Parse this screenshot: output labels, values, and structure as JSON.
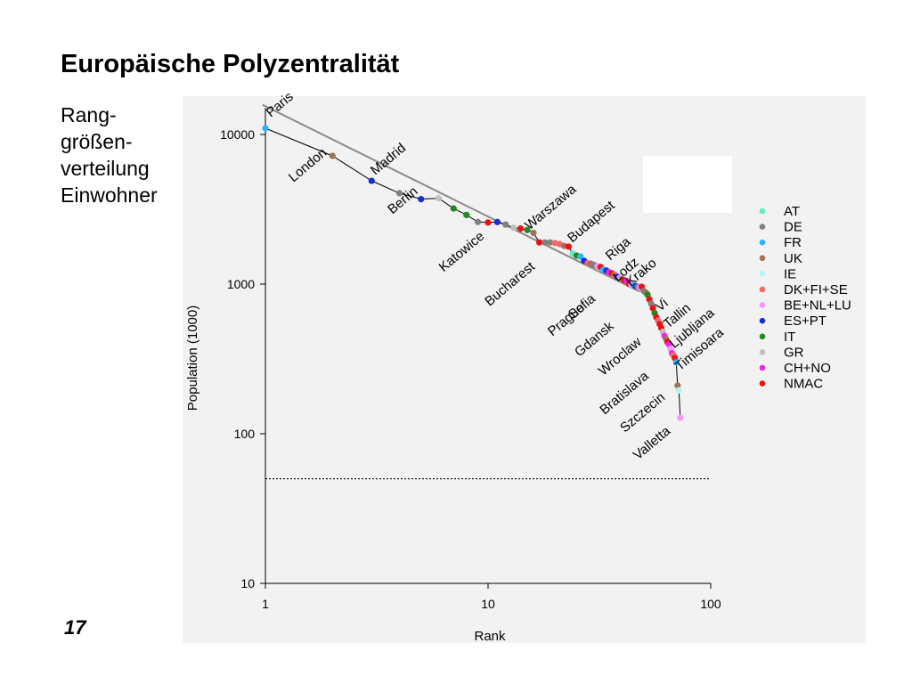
{
  "slide": {
    "title": "Europäische Polyzentralität",
    "side_label": [
      "Rang-",
      "größen-",
      "verteilung",
      "Einwohner"
    ],
    "number": "17"
  },
  "chart_data": {
    "type": "scatter",
    "title": "",
    "xlabel": "Rank",
    "ylabel": "Population (1000)",
    "x_scale": "log",
    "y_scale": "log",
    "xlim": [
      1,
      100
    ],
    "ylim": [
      10,
      15000
    ],
    "x_ticks": [
      {
        "value": 1,
        "label": "1"
      },
      {
        "value": 10,
        "label": "10"
      },
      {
        "value": 100,
        "label": "100"
      }
    ],
    "y_ticks": [
      {
        "value": 10,
        "label": "10"
      },
      {
        "value": 100,
        "label": "100"
      },
      {
        "value": 1000,
        "label": "1000"
      },
      {
        "value": 10000,
        "label": "10000"
      }
    ],
    "grid": false,
    "threshold": {
      "y": 50,
      "style": "dotted"
    },
    "trend_line": {
      "x": [
        0.97,
        48
      ],
      "y": [
        15800,
        890
      ]
    },
    "legend_position": "right",
    "legend": [
      {
        "key": "AT",
        "label": "AT",
        "color": "#66e8c4"
      },
      {
        "key": "DE",
        "label": "DE",
        "color": "#808080"
      },
      {
        "key": "FR",
        "label": "FR",
        "color": "#29b6f6"
      },
      {
        "key": "UK",
        "label": "UK",
        "color": "#a0725a"
      },
      {
        "key": "IE",
        "label": "IE",
        "color": "#b4f4f4"
      },
      {
        "key": "DK_FI_SE",
        "label": "DK+FI+SE",
        "color": "#ef6a6a"
      },
      {
        "key": "BE_NL_LU",
        "label": "BE+NL+LU",
        "color": "#f39af3"
      },
      {
        "key": "ES_PT",
        "label": "ES+PT",
        "color": "#1a2bd8"
      },
      {
        "key": "IT",
        "label": "IT",
        "color": "#1f8a1f"
      },
      {
        "key": "GR",
        "label": "GR",
        "color": "#c0c0c0"
      },
      {
        "key": "CH_NO",
        "label": "CH+NO",
        "color": "#ee22ee"
      },
      {
        "key": "NMAC",
        "label": "NMAC",
        "color": "#ee1111"
      }
    ],
    "points": [
      {
        "rank": 1,
        "pop": 11000,
        "group": "FR"
      },
      {
        "rank": 2,
        "pop": 7200,
        "group": "UK"
      },
      {
        "rank": 3,
        "pop": 4900,
        "group": "ES_PT"
      },
      {
        "rank": 4,
        "pop": 4050,
        "group": "DE"
      },
      {
        "rank": 5,
        "pop": 3700,
        "group": "ES_PT"
      },
      {
        "rank": 6,
        "pop": 3750,
        "group": "GR"
      },
      {
        "rank": 7,
        "pop": 3200,
        "group": "IT"
      },
      {
        "rank": 8,
        "pop": 2900,
        "group": "IT"
      },
      {
        "rank": 9,
        "pop": 2600,
        "group": "DE"
      },
      {
        "rank": 10,
        "pop": 2580,
        "group": "NMAC"
      },
      {
        "rank": 11,
        "pop": 2600,
        "group": "ES_PT"
      },
      {
        "rank": 12,
        "pop": 2500,
        "group": "DE"
      },
      {
        "rank": 13,
        "pop": 2380,
        "group": "GR"
      },
      {
        "rank": 14,
        "pop": 2350,
        "group": "NMAC"
      },
      {
        "rank": 15,
        "pop": 2300,
        "group": "IT"
      },
      {
        "rank": 16,
        "pop": 2200,
        "group": "UK"
      },
      {
        "rank": 17,
        "pop": 1900,
        "group": "NMAC"
      },
      {
        "rank": 18,
        "pop": 1900,
        "group": "DE"
      },
      {
        "rank": 19,
        "pop": 1900,
        "group": "DE"
      },
      {
        "rank": 20,
        "pop": 1880,
        "group": "DK_FI_SE"
      },
      {
        "rank": 21,
        "pop": 1850,
        "group": "DK_FI_SE"
      },
      {
        "rank": 22,
        "pop": 1800,
        "group": "UK"
      },
      {
        "rank": 23,
        "pop": 1780,
        "group": "NMAC"
      },
      {
        "rank": 24,
        "pop": 1600,
        "group": "AT"
      },
      {
        "rank": 25,
        "pop": 1550,
        "group": "IT"
      },
      {
        "rank": 26,
        "pop": 1530,
        "group": "FR"
      },
      {
        "rank": 27,
        "pop": 1430,
        "group": "ES_PT"
      },
      {
        "rank": 28,
        "pop": 1380,
        "group": "DK_FI_SE"
      },
      {
        "rank": 29,
        "pop": 1370,
        "group": "UK"
      },
      {
        "rank": 30,
        "pop": 1340,
        "group": "DE"
      },
      {
        "rank": 31,
        "pop": 1320,
        "group": "BE_NL_LU"
      },
      {
        "rank": 32,
        "pop": 1300,
        "group": "NMAC"
      },
      {
        "rank": 33,
        "pop": 1250,
        "group": "FR"
      },
      {
        "rank": 34,
        "pop": 1230,
        "group": "ES_PT"
      },
      {
        "rank": 35,
        "pop": 1200,
        "group": "CH_NO"
      },
      {
        "rank": 36,
        "pop": 1180,
        "group": "NMAC"
      },
      {
        "rank": 37,
        "pop": 1150,
        "group": "DK_FI_SE"
      },
      {
        "rank": 38,
        "pop": 1120,
        "group": "ES_PT"
      },
      {
        "rank": 39,
        "pop": 1100,
        "group": "BE_NL_LU"
      },
      {
        "rank": 40,
        "pop": 1080,
        "group": "UK"
      },
      {
        "rank": 41,
        "pop": 1060,
        "group": "NMAC"
      },
      {
        "rank": 42,
        "pop": 1050,
        "group": "CH_NO"
      },
      {
        "rank": 43,
        "pop": 1000,
        "group": "NMAC"
      },
      {
        "rank": 44,
        "pop": 990,
        "group": "BE_NL_LU"
      },
      {
        "rank": 45,
        "pop": 980,
        "group": "FR"
      },
      {
        "rank": 46,
        "pop": 970,
        "group": "ES_PT"
      },
      {
        "rank": 47,
        "pop": 960,
        "group": "DE"
      },
      {
        "rank": 48,
        "pop": 950,
        "group": "BE_NL_LU"
      },
      {
        "rank": 49,
        "pop": 960,
        "group": "NMAC"
      },
      {
        "rank": 50,
        "pop": 900,
        "group": "DE"
      },
      {
        "rank": 51,
        "pop": 880,
        "group": "UK"
      },
      {
        "rank": 52,
        "pop": 850,
        "group": "IT"
      },
      {
        "rank": 53,
        "pop": 790,
        "group": "NMAC"
      },
      {
        "rank": 54,
        "pop": 740,
        "group": "DE"
      },
      {
        "rank": 55,
        "pop": 690,
        "group": "NMAC"
      },
      {
        "rank": 56,
        "pop": 640,
        "group": "IT"
      },
      {
        "rank": 57,
        "pop": 600,
        "group": "NMAC"
      },
      {
        "rank": 58,
        "pop": 570,
        "group": "DK_FI_SE"
      },
      {
        "rank": 59,
        "pop": 540,
        "group": "NMAC"
      },
      {
        "rank": 60,
        "pop": 510,
        "group": "NMAC"
      },
      {
        "rank": 61,
        "pop": 480,
        "group": "GR"
      },
      {
        "rank": 62,
        "pop": 450,
        "group": "CH_NO"
      },
      {
        "rank": 63,
        "pop": 430,
        "group": "UK"
      },
      {
        "rank": 64,
        "pop": 410,
        "group": "NMAC"
      },
      {
        "rank": 65,
        "pop": 395,
        "group": "CH_NO"
      },
      {
        "rank": 66,
        "pop": 370,
        "group": "BE_NL_LU"
      },
      {
        "rank": 67,
        "pop": 345,
        "group": "CH_NO"
      },
      {
        "rank": 68,
        "pop": 335,
        "group": "DK_FI_SE"
      },
      {
        "rank": 69,
        "pop": 320,
        "group": "NMAC"
      },
      {
        "rank": 70,
        "pop": 300,
        "group": "FR"
      },
      {
        "rank": 71,
        "pop": 210,
        "group": "UK"
      },
      {
        "rank": 72,
        "pop": 195,
        "group": "IE"
      },
      {
        "rank": 73,
        "pop": 128,
        "group": "BE_NL_LU"
      }
    ],
    "city_labels": [
      {
        "text": "Paris",
        "rank": 1
      },
      {
        "text": "London",
        "rank": 2
      },
      {
        "text": "Madrid",
        "rank": 3
      },
      {
        "text": "Berlin",
        "rank": 4
      },
      {
        "text": "Katowice",
        "rank": 10
      },
      {
        "text": "Warszawa",
        "rank": 14
      },
      {
        "text": "Bucharest",
        "rank": 17
      },
      {
        "text": "Budapest",
        "rank": 23
      },
      {
        "text": "Prague",
        "rank": 32
      },
      {
        "text": "Riga",
        "rank": 36
      },
      {
        "text": "Sofia",
        "rank": 36
      },
      {
        "text": "Lodz",
        "rank": 41
      },
      {
        "text": "Gdansk",
        "rank": 43
      },
      {
        "text": "Krako",
        "rank": 47
      },
      {
        "text": "Wroclaw",
        "rank": 53
      },
      {
        "text": "Vi",
        "rank": 57
      },
      {
        "text": "Bratislava",
        "rank": 59
      },
      {
        "text": "Tallin",
        "rank": 62
      },
      {
        "text": "Szczecin",
        "rank": 64
      },
      {
        "text": "Ljubljana",
        "rank": 66
      },
      {
        "text": "Valletta",
        "rank": 68
      },
      {
        "text": "Timisoara",
        "rank": 70
      }
    ]
  }
}
